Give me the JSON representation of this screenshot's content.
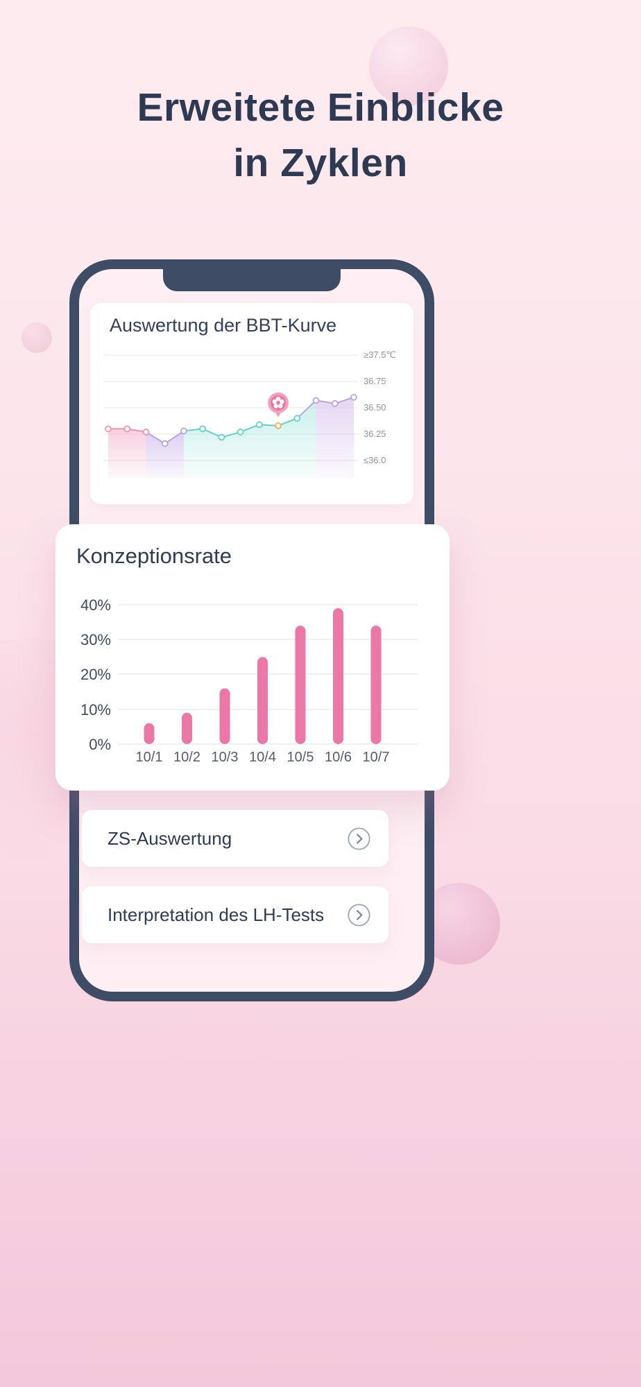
{
  "header": {
    "title_line1": "Erweitete Einblicke",
    "title_line2": "in Zyklen"
  },
  "bbt_card": {
    "title": "Auswertung der BBT-Kurve"
  },
  "conception_card": {
    "title": "Konzeptionsrate"
  },
  "menu": {
    "items": [
      {
        "label": "ZS-Auswertung",
        "icon": "chevron-right-icon"
      },
      {
        "label": "Interpretation des LH-Tests",
        "icon": "chevron-right-icon"
      }
    ]
  },
  "colors": {
    "accent_pink": "#ec77a7",
    "phone_frame_navy": "#3e4c66",
    "heading_text": "#2e3a53"
  },
  "chart_data": [
    {
      "type": "line",
      "title": "Auswertung der BBT-Kurve",
      "y_tick_labels": [
        "≥37.5℃",
        "36.75",
        "36.50",
        "36.25",
        "≤36.0"
      ],
      "y_tick_temps": [
        37.5,
        36.75,
        36.5,
        36.25,
        36.0
      ],
      "points": [
        {
          "temp": 36.3,
          "phase": "period"
        },
        {
          "temp": 36.3,
          "phase": "period"
        },
        {
          "temp": 36.27,
          "phase": "period"
        },
        {
          "temp": 36.16,
          "phase": "pre_ovulation"
        },
        {
          "temp": 36.28,
          "phase": "pre_ovulation"
        },
        {
          "temp": 36.3,
          "phase": "fertile"
        },
        {
          "temp": 36.22,
          "phase": "fertile"
        },
        {
          "temp": 36.27,
          "phase": "fertile"
        },
        {
          "temp": 36.34,
          "phase": "fertile"
        },
        {
          "temp": 36.33,
          "phase": "fertile",
          "marker": "ovulation-flower"
        },
        {
          "temp": 36.4,
          "phase": "fertile"
        },
        {
          "temp": 36.57,
          "phase": "luteal"
        },
        {
          "temp": 36.54,
          "phase": "luteal"
        },
        {
          "temp": 36.6,
          "phase": "luteal"
        }
      ],
      "phase_colors": {
        "period": "#f291b5",
        "pre_ovulation": "#b9a3e3",
        "fertile": "#5ed3c8",
        "luteal": "#b9a3e3"
      },
      "band_colors": {
        "period": "#f5b8cf",
        "pre_ovulation": "#cdb4ea",
        "fertile": "#aee8df",
        "luteal": "#d9c2ef"
      },
      "bands": [
        {
          "from": 0,
          "to": 2,
          "phase": "period"
        },
        {
          "from": 2,
          "to": 4,
          "phase": "pre_ovulation"
        },
        {
          "from": 4,
          "to": 11,
          "phase": "fertile"
        },
        {
          "from": 11,
          "to": 13,
          "phase": "luteal"
        }
      ],
      "marker": {
        "index": 9,
        "name": "ovulation-flower-marker",
        "point_color": "#f2b04f"
      }
    },
    {
      "type": "bar",
      "title": "Konzeptionsrate",
      "categories": [
        "10/1",
        "10/2",
        "10/3",
        "10/4",
        "10/5",
        "10/6",
        "10/7"
      ],
      "values": [
        6,
        9,
        16,
        25,
        34,
        39,
        34
      ],
      "y_tick_labels_top_down": [
        "40%",
        "30%",
        "20%",
        "10%",
        "0%"
      ],
      "ylim": [
        0,
        40
      ],
      "ylabel": "",
      "xlabel": "",
      "grid": true,
      "legend": false,
      "bar_color": "#ec77a7"
    }
  ]
}
